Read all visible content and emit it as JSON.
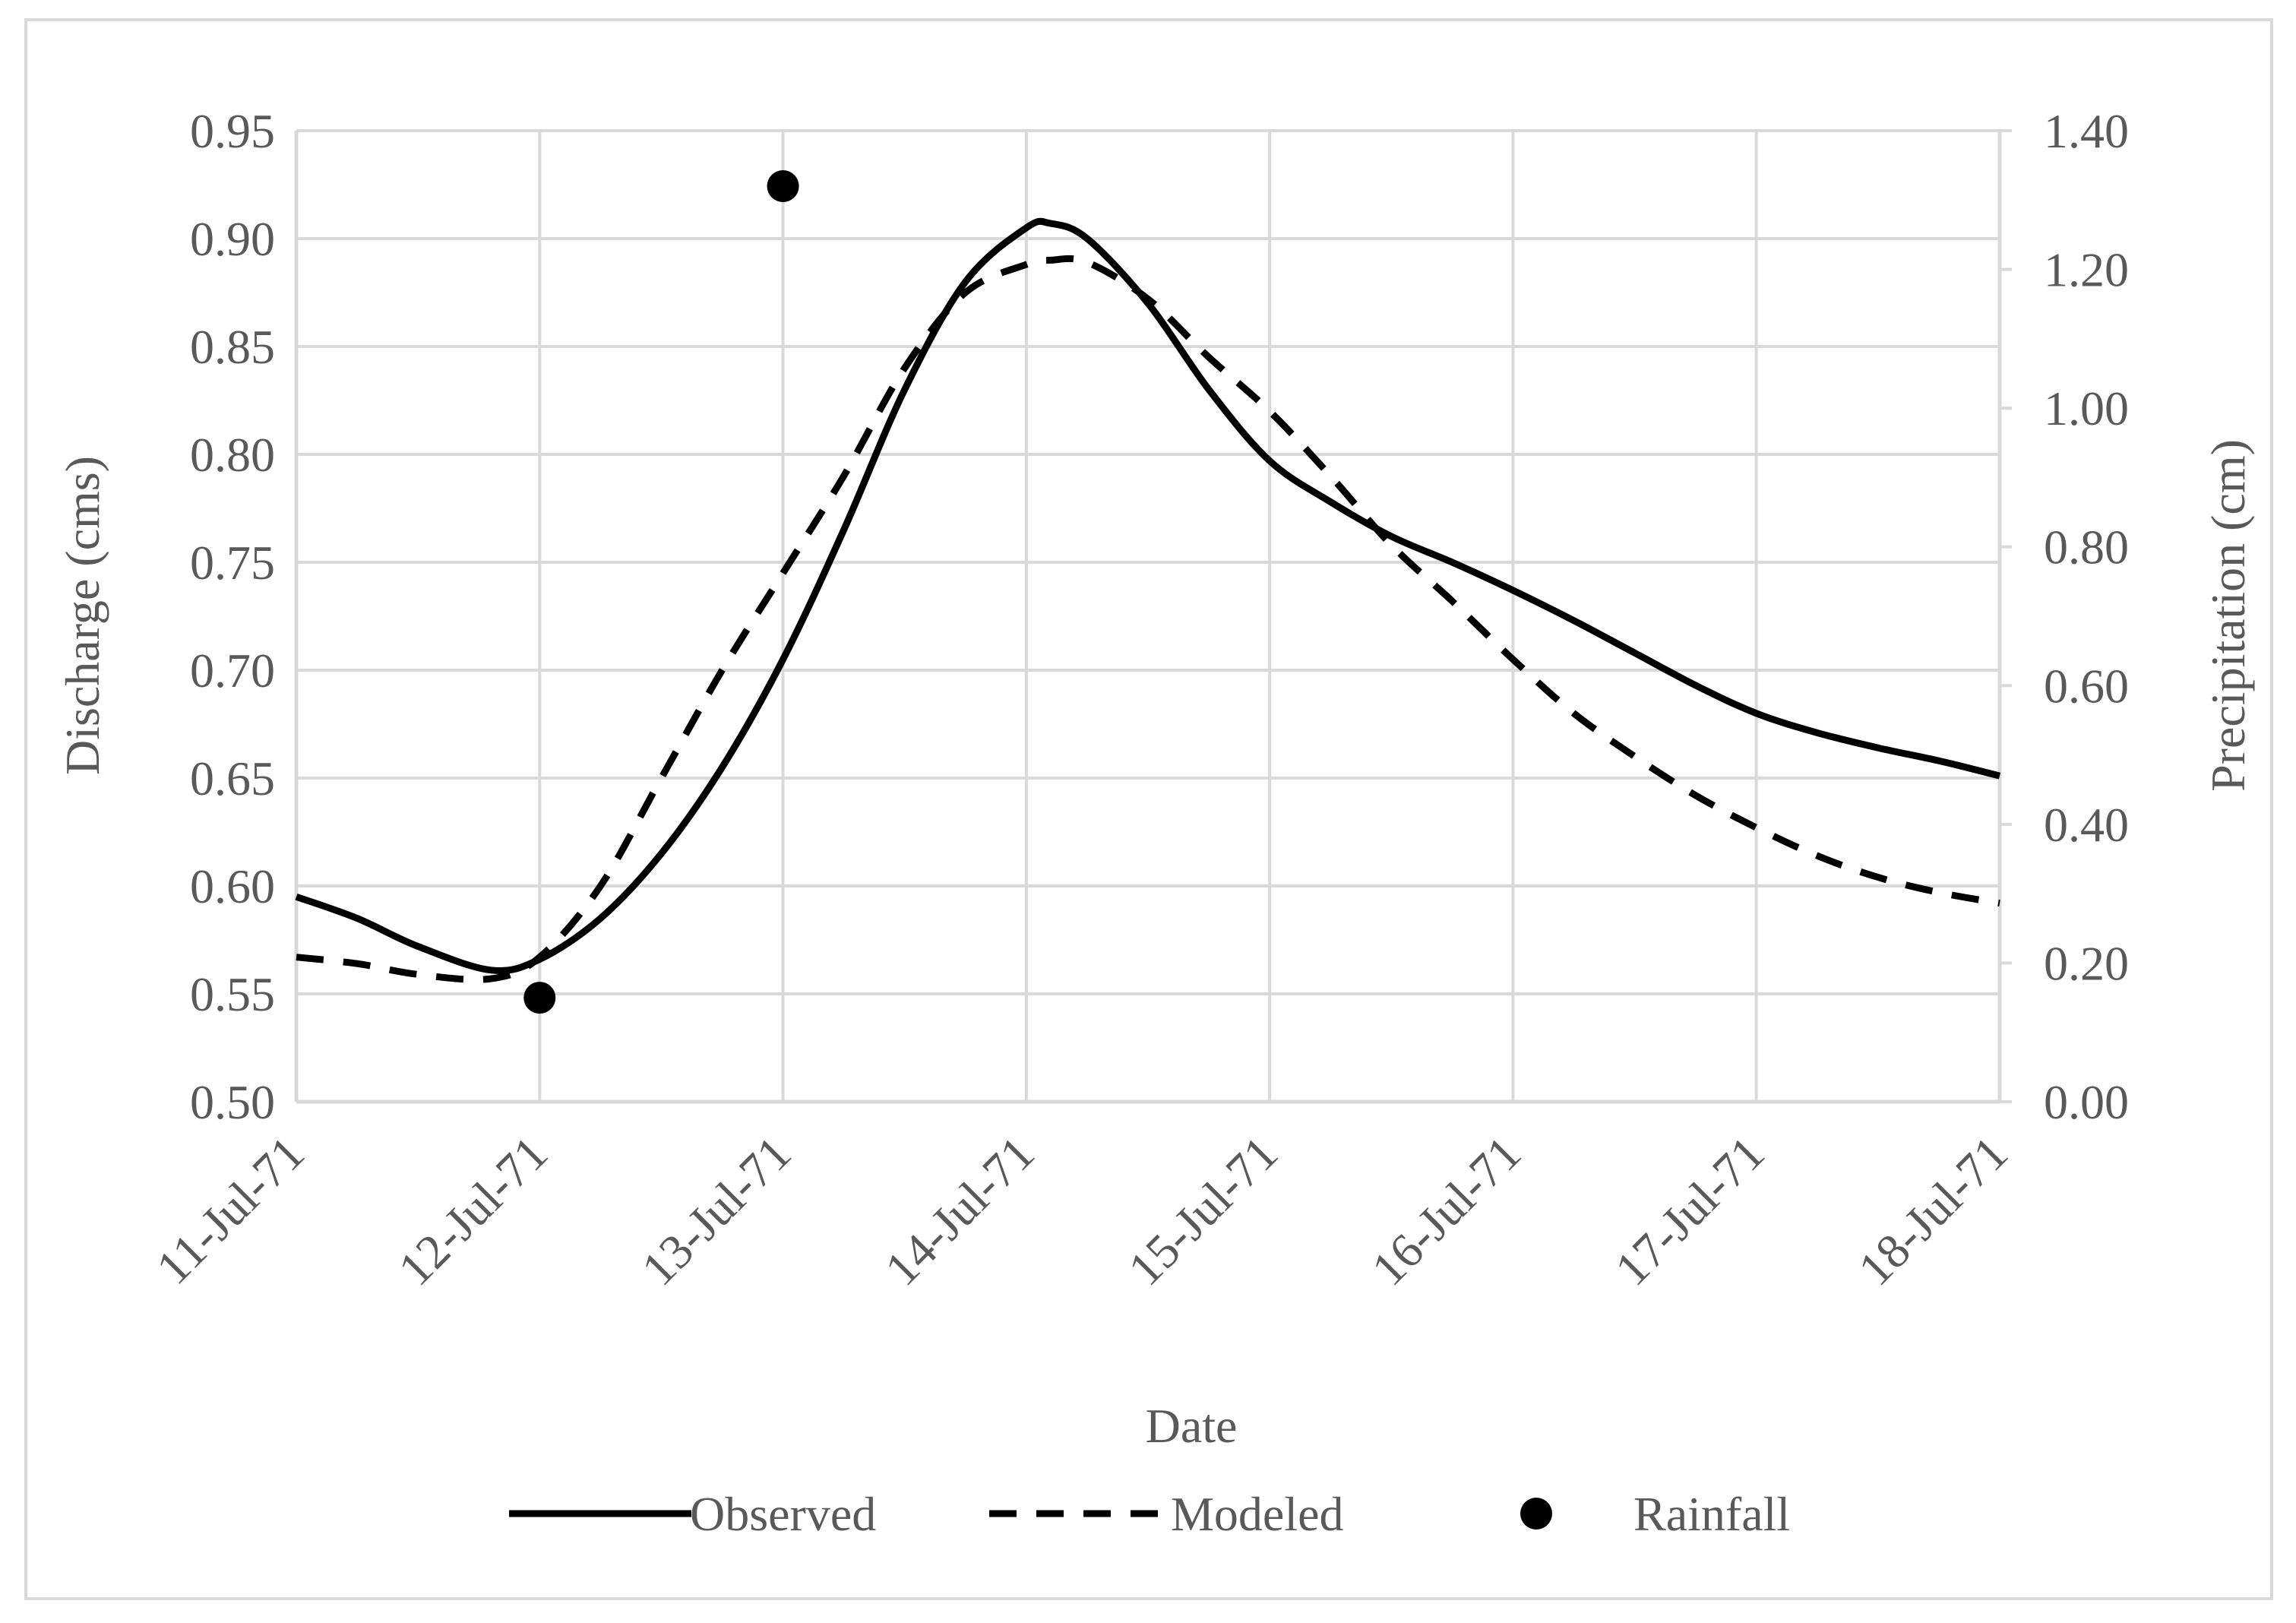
{
  "chart_data": {
    "type": "line",
    "title": "",
    "xlabel": "Date",
    "ylabel": "Discharge (cms)",
    "y2label": "Precipitation (cm)",
    "categories": [
      "11-Jul-71",
      "12-Jul-71",
      "13-Jul-71",
      "14-Jul-71",
      "15-Jul-71",
      "16-Jul-71",
      "17-Jul-71",
      "18-Jul-71"
    ],
    "ylim": [
      0.5,
      0.95
    ],
    "y_ticks": [
      "0.50",
      "0.55",
      "0.60",
      "0.65",
      "0.70",
      "0.75",
      "0.80",
      "0.85",
      "0.90",
      "0.95"
    ],
    "y2lim": [
      0,
      1.4
    ],
    "y2_ticks": [
      "0.00",
      "0.20",
      "0.40",
      "0.60",
      "0.80",
      "1.00",
      "1.20",
      "1.40"
    ],
    "grid": true,
    "legend_position": "bottom",
    "series": [
      {
        "name": "Observed",
        "style": "solid",
        "axis": "left",
        "color": "#000000",
        "x": [
          0,
          0.25,
          0.5,
          0.8,
          1.0,
          1.25,
          1.5,
          1.75,
          2.0,
          2.25,
          2.5,
          2.75,
          3.0,
          3.1,
          3.25,
          3.5,
          3.75,
          4.0,
          4.25,
          4.5,
          4.75,
          5.0,
          5.25,
          5.5,
          5.75,
          6.0,
          6.25,
          6.5,
          6.75,
          7.0
        ],
        "values": [
          0.595,
          0.585,
          0.572,
          0.561,
          0.566,
          0.585,
          0.615,
          0.655,
          0.705,
          0.765,
          0.83,
          0.88,
          0.905,
          0.907,
          0.9,
          0.87,
          0.83,
          0.797,
          0.778,
          0.762,
          0.75,
          0.737,
          0.723,
          0.708,
          0.693,
          0.68,
          0.671,
          0.664,
          0.658,
          0.651
        ]
      },
      {
        "name": "Modeled",
        "style": "dashed",
        "axis": "left",
        "color": "#000000",
        "x": [
          0,
          0.25,
          0.5,
          0.8,
          1.0,
          1.25,
          1.5,
          1.75,
          2.0,
          2.25,
          2.5,
          2.75,
          3.0,
          3.1,
          3.25,
          3.5,
          3.75,
          4.0,
          4.25,
          4.5,
          4.75,
          5.0,
          5.25,
          5.5,
          5.75,
          6.0,
          6.25,
          6.5,
          6.75,
          7.0
        ],
        "values": [
          0.567,
          0.564,
          0.559,
          0.557,
          0.567,
          0.6,
          0.65,
          0.7,
          0.745,
          0.79,
          0.84,
          0.875,
          0.888,
          0.89,
          0.889,
          0.872,
          0.845,
          0.82,
          0.79,
          0.758,
          0.732,
          0.705,
          0.68,
          0.66,
          0.642,
          0.627,
          0.614,
          0.604,
          0.597,
          0.592
        ]
      },
      {
        "name": "Rainfall",
        "style": "marker",
        "axis": "right",
        "color": "#000000",
        "x": [
          1,
          2
        ],
        "values": [
          0.15,
          1.32
        ]
      }
    ]
  },
  "colors": {
    "gridline": "#d9d9d9",
    "axis_text": "#595959",
    "series": "#000000",
    "border": "#d9d9d9"
  }
}
